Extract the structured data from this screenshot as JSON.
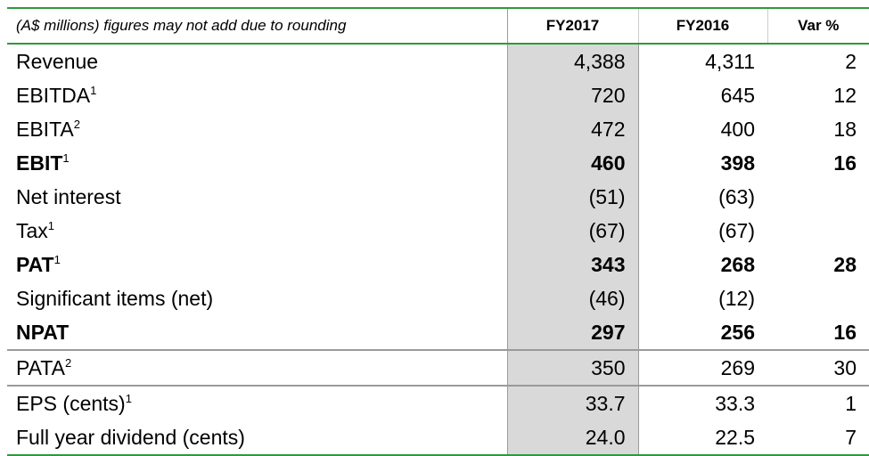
{
  "table": {
    "header": {
      "label": "(A$ millions) figures may not add due to rounding",
      "col1": "FY2017",
      "col2": "FY2016",
      "col3": "Var %"
    },
    "rows": [
      {
        "label": "Revenue",
        "sup": "",
        "fy2017": "4,388",
        "fy2016": "4,311",
        "var": "2"
      },
      {
        "label": "EBITDA",
        "sup": "1",
        "fy2017": "720",
        "fy2016": "645",
        "var": "12"
      },
      {
        "label": "EBITA",
        "sup": "2",
        "fy2017": "472",
        "fy2016": "400",
        "var": "18"
      },
      {
        "label": "EBIT",
        "sup": "1",
        "fy2017": "460",
        "fy2016": "398",
        "var": "16"
      },
      {
        "label": "Net interest",
        "sup": "",
        "fy2017": "(51)",
        "fy2016": "(63)",
        "var": ""
      },
      {
        "label": "Tax",
        "sup": "1",
        "fy2017": "(67)",
        "fy2016": "(67)",
        "var": ""
      },
      {
        "label": "PAT",
        "sup": "1",
        "fy2017": "343",
        "fy2016": "268",
        "var": "28"
      },
      {
        "label": "Significant items (net)",
        "sup": "",
        "fy2017": "(46)",
        "fy2016": "(12)",
        "var": ""
      },
      {
        "label": "NPAT",
        "sup": "",
        "fy2017": "297",
        "fy2016": "256",
        "var": "16"
      },
      {
        "label": "PATA",
        "sup": "2",
        "fy2017": "350",
        "fy2016": "269",
        "var": "30"
      },
      {
        "label": "EPS (cents)",
        "sup": "1",
        "fy2017": "33.7",
        "fy2016": "33.3",
        "var": "1"
      },
      {
        "label": "Full year dividend (cents)",
        "sup": "",
        "fy2017": "24.0",
        "fy2016": "22.5",
        "var": "7"
      }
    ]
  },
  "colors": {
    "rule_green": "#2d9a3a",
    "highlight_column": "#d9d9d9",
    "separator_gray": "#9a9a9a"
  }
}
